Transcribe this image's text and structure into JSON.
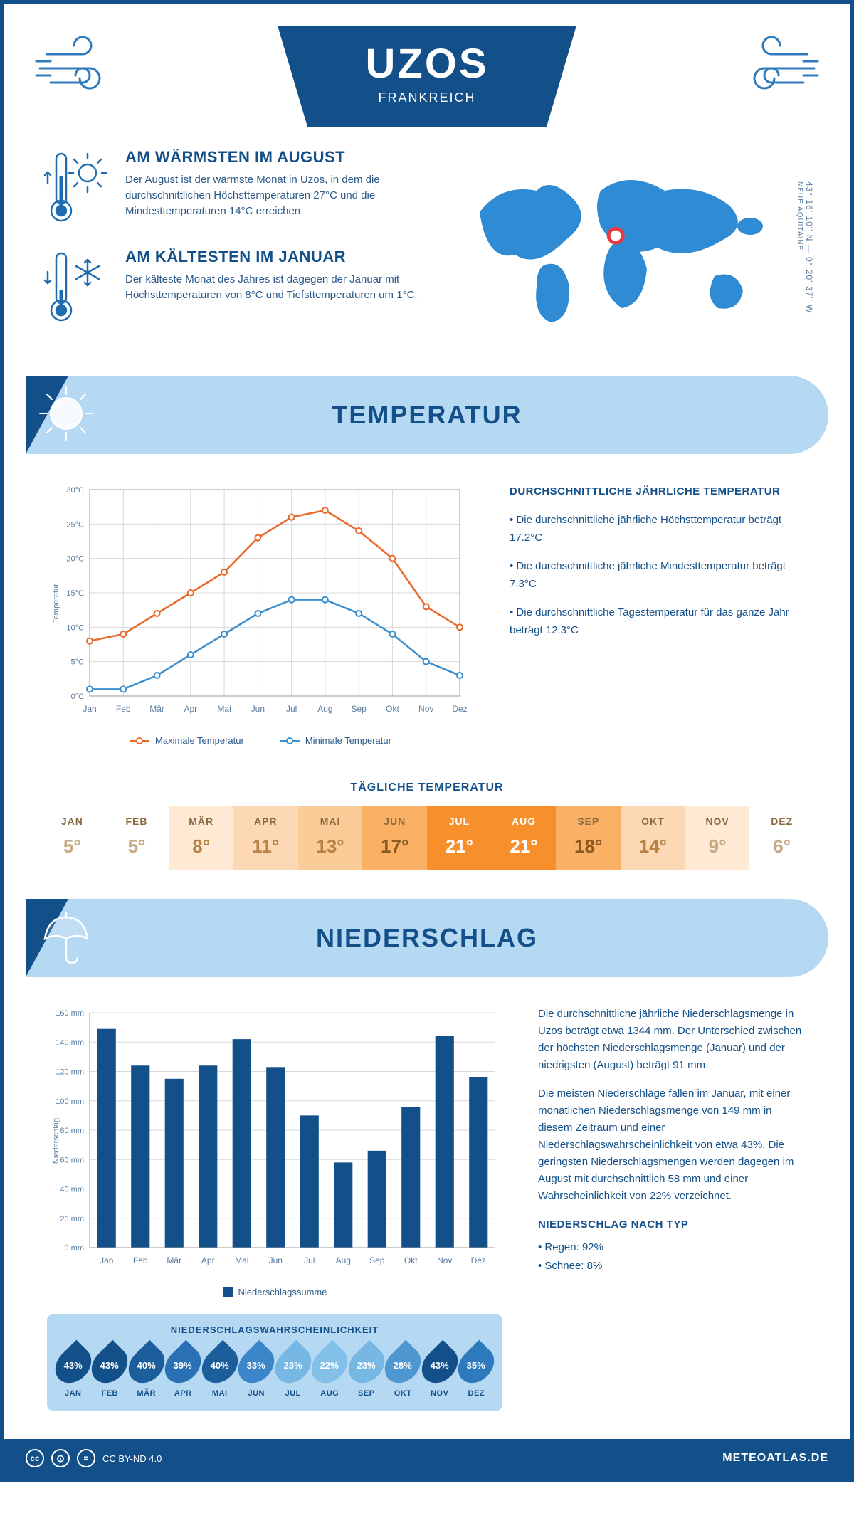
{
  "header": {
    "city": "UZOS",
    "country": "FRANKREICH",
    "coords": "43° 16' 10'' N — 0° 20' 37'' W",
    "region": "NEUE AQUITAINE"
  },
  "colors": {
    "primary": "#134f88",
    "primary_mid": "#1f6bb0",
    "light_blue": "#b5d8f3",
    "chart_max": "#e86a2a",
    "chart_min": "#3b8fcf",
    "grid": "#d0d0d0",
    "text": "#2c5a8a"
  },
  "warmest": {
    "title": "AM WÄRMSTEN IM AUGUST",
    "text": "Der August ist der wärmste Monat in Uzos, in dem die durchschnittlichen Höchsttemperaturen 27°C und die Mindesttemperaturen 14°C erreichen."
  },
  "coldest": {
    "title": "AM KÄLTESTEN IM JANUAR",
    "text": "Der kälteste Monat des Jahres ist dagegen der Januar mit Höchsttemperaturen von 8°C und Tiefsttemperaturen um 1°C."
  },
  "map_marker": {
    "cx_pct": 48,
    "cy_pct": 43
  },
  "temperature_section": {
    "title": "TEMPERATUR",
    "chart": {
      "type": "line",
      "ylabel": "Temperatur",
      "ylim": [
        0,
        30
      ],
      "ytick_step": 5,
      "ytick_suffix": "°C",
      "months": [
        "Jan",
        "Feb",
        "Mär",
        "Apr",
        "Mai",
        "Jun",
        "Jul",
        "Aug",
        "Sep",
        "Okt",
        "Nov",
        "Dez"
      ],
      "series": [
        {
          "name": "Maximale Temperatur",
          "color": "#e86a2a",
          "values": [
            8,
            9,
            12,
            15,
            18,
            23,
            26,
            27,
            24,
            20,
            13,
            10
          ]
        },
        {
          "name": "Minimale Temperatur",
          "color": "#3b8fcf",
          "values": [
            1,
            1,
            3,
            6,
            9,
            12,
            14,
            14,
            12,
            9,
            5,
            3
          ]
        }
      ],
      "line_width": 2.5,
      "marker_radius": 4,
      "background": "#ffffff",
      "grid_color": "#d8d8d8",
      "label_fontsize": 11
    },
    "side": {
      "title": "DURCHSCHNITTLICHE JÄHRLICHE TEMPERATUR",
      "bullets": [
        "• Die durchschnittliche jährliche Höchsttemperatur beträgt 17.2°C",
        "• Die durchschnittliche jährliche Mindesttemperatur beträgt 7.3°C",
        "• Die durchschnittliche Tagestemperatur für das ganze Jahr beträgt 12.3°C"
      ]
    },
    "daily": {
      "title": "TÄGLICHE TEMPERATUR",
      "months": [
        "JAN",
        "FEB",
        "MÄR",
        "APR",
        "MAI",
        "JUN",
        "JUL",
        "AUG",
        "SEP",
        "OKT",
        "NOV",
        "DEZ"
      ],
      "values": [
        "5°",
        "5°",
        "8°",
        "11°",
        "13°",
        "17°",
        "21°",
        "21°",
        "18°",
        "14°",
        "9°",
        "6°"
      ],
      "cell_colors": [
        "#ffffff",
        "#ffffff",
        "#fde9d4",
        "#fcd9b4",
        "#fbcc98",
        "#fab166",
        "#f78f2a",
        "#f78f2a",
        "#fab166",
        "#fcd9b4",
        "#fde9d4",
        "#ffffff"
      ],
      "text_colors": [
        "#c7a983",
        "#c7a983",
        "#b58445",
        "#b58445",
        "#b58445",
        "#8a5a20",
        "#ffffff",
        "#ffffff",
        "#8a5a20",
        "#b58445",
        "#c7a983",
        "#c7a983"
      ]
    }
  },
  "precip_section": {
    "title": "NIEDERSCHLAG",
    "chart": {
      "type": "bar",
      "ylabel": "Niederschlag",
      "ylim": [
        0,
        160
      ],
      "ytick_step": 20,
      "ytick_suffix": " mm",
      "months": [
        "Jan",
        "Feb",
        "Mär",
        "Apr",
        "Mai",
        "Jun",
        "Jul",
        "Aug",
        "Sep",
        "Okt",
        "Nov",
        "Dez"
      ],
      "values": [
        149,
        124,
        115,
        124,
        142,
        123,
        90,
        58,
        66,
        96,
        144,
        116
      ],
      "bar_color": "#134f88",
      "legend_label": "Niederschlagssumme",
      "bar_width": 0.55,
      "background": "#ffffff",
      "grid_color": "#d8d8d8",
      "label_fontsize": 11
    },
    "paragraphs": [
      "Die durchschnittliche jährliche Niederschlagsmenge in Uzos beträgt etwa 1344 mm. Der Unterschied zwischen der höchsten Niederschlagsmenge (Januar) und der niedrigsten (August) beträgt 91 mm.",
      "Die meisten Niederschläge fallen im Januar, mit einer monatlichen Niederschlagsmenge von 149 mm in diesem Zeitraum und einer Niederschlagswahrscheinlichkeit von etwa 43%. Die geringsten Niederschlagsmengen werden dagegen im August mit durchschnittlich 58 mm und einer Wahrscheinlichkeit von 22% verzeichnet."
    ],
    "type_title": "NIEDERSCHLAG NACH TYP",
    "type_bullets": [
      "• Regen: 92%",
      "• Schnee: 8%"
    ],
    "probability": {
      "title": "NIEDERSCHLAGSWAHRSCHEINLICHKEIT",
      "months": [
        "JAN",
        "FEB",
        "MÄR",
        "APR",
        "MAI",
        "JUN",
        "JUL",
        "AUG",
        "SEP",
        "OKT",
        "NOV",
        "DEZ"
      ],
      "values": [
        "43%",
        "43%",
        "40%",
        "39%",
        "40%",
        "33%",
        "23%",
        "22%",
        "23%",
        "28%",
        "43%",
        "35%"
      ],
      "drop_colors": [
        "#134f88",
        "#134f88",
        "#1c5e9c",
        "#2971b4",
        "#1c5e9c",
        "#3b86c8",
        "#77b7e4",
        "#83c0e9",
        "#77b7e4",
        "#4f97d1",
        "#134f88",
        "#2e7abc"
      ]
    }
  },
  "footer": {
    "license": "CC BY-ND 4.0",
    "site": "METEOATLAS.DE"
  }
}
